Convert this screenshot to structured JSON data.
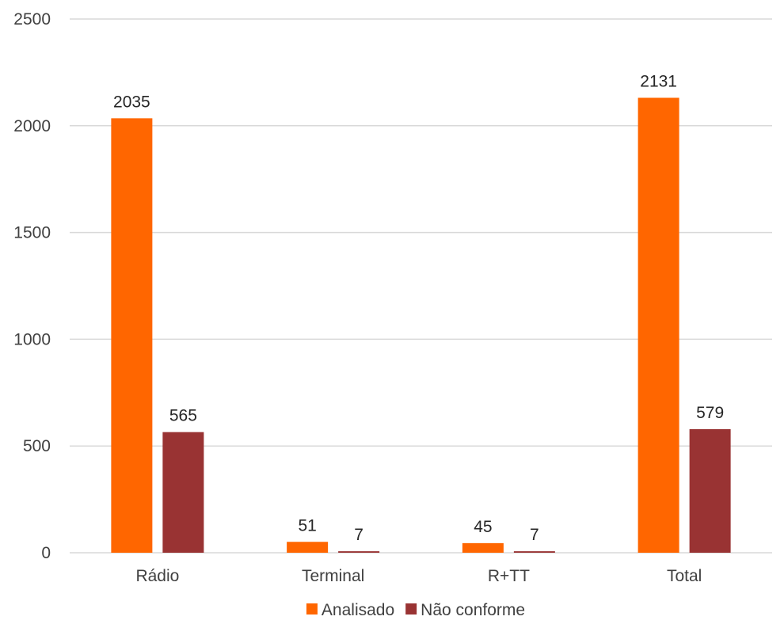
{
  "chart_data": {
    "type": "bar",
    "categories": [
      "Rádio",
      "Terminal",
      "R+TT",
      "Total"
    ],
    "series": [
      {
        "name": "Analisado",
        "color": "#ff6600",
        "values": [
          2035,
          51,
          45,
          2131
        ]
      },
      {
        "name": "Não conforme",
        "color": "#993333",
        "values": [
          565,
          7,
          7,
          579
        ]
      }
    ],
    "ylim": [
      0,
      2500
    ],
    "yticks": [
      0,
      500,
      1000,
      1500,
      2000,
      2500
    ],
    "grid": true,
    "legend_position": "bottom",
    "data_labels": true,
    "title": "",
    "xlabel": "",
    "ylabel": ""
  }
}
